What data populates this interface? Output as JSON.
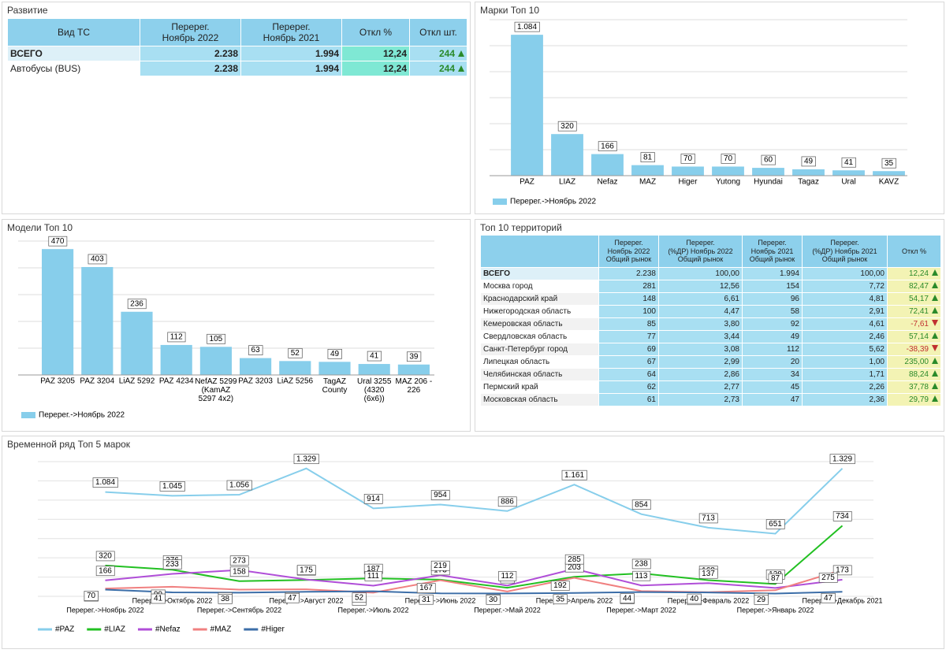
{
  "dev_panel": {
    "title": "Развитие",
    "columns": [
      "Вид ТС",
      "Перерег.\nНоябрь 2022",
      "Перерег.\nНоябрь 2021",
      "Откл %",
      "Откл шт."
    ],
    "rows": [
      [
        "ВСЕГО",
        "2.238",
        "1.994",
        "12,24",
        "244"
      ],
      [
        "Автобусы (BUS)",
        "2.238",
        "1.994",
        "12,24",
        "244"
      ]
    ]
  },
  "brands_panel": {
    "title": "Марки Топ 10"
  },
  "models_panel": {
    "title": "Модели Топ 10"
  },
  "series_panel": {
    "title": "Временной ряд Топ 5 марок"
  },
  "territory_panel": {
    "title": "Топ 10 территорий",
    "columns": [
      "Перерег.\nНоябрь 2022\nОбщий рынок",
      "Перерег.\n(%ДР) Ноябрь 2022\nОбщий рынок",
      "Перерег.\nНоябрь 2021\nОбщий рынок",
      "Перерег.\n(%ДР) Ноябрь 2021\nОбщий рынок",
      "Откл %"
    ],
    "rows": [
      [
        "ВСЕГО",
        "2.238",
        "100,00",
        "1.994",
        "100,00",
        "12,24"
      ],
      [
        "Москва город",
        "281",
        "12,56",
        "154",
        "7,72",
        "82,47"
      ],
      [
        "Краснодарский край",
        "148",
        "6,61",
        "96",
        "4,81",
        "54,17"
      ],
      [
        "Нижегородская область",
        "100",
        "4,47",
        "58",
        "2,91",
        "72,41"
      ],
      [
        "Кемеровская область",
        "85",
        "3,80",
        "92",
        "4,61",
        "-7,61"
      ],
      [
        "Свердловская область",
        "77",
        "3,44",
        "49",
        "2,46",
        "57,14"
      ],
      [
        "Санкт-Петербург город",
        "69",
        "3,08",
        "112",
        "5,62",
        "-38,39"
      ],
      [
        "Липецкая область",
        "67",
        "2,99",
        "20",
        "1,00",
        "235,00"
      ],
      [
        "Челябинская область",
        "64",
        "2,86",
        "34",
        "1,71",
        "88,24"
      ],
      [
        "Пермский край",
        "62",
        "2,77",
        "45",
        "2,26",
        "37,78"
      ],
      [
        "Московская область",
        "61",
        "2,73",
        "47",
        "2,36",
        "29,79"
      ]
    ]
  },
  "chart_data": [
    {
      "type": "bar",
      "categories": [
        "PAZ",
        "LIAZ",
        "Nefaz",
        "MAZ",
        "Higer",
        "Yutong",
        "Hyundai",
        "Tagaz",
        "Ural",
        "KAVZ"
      ],
      "series": [
        {
          "name": "Перерег.->Ноябрь 2022",
          "color": "#87ceeb",
          "values": [
            1084,
            320,
            166,
            81,
            70,
            70,
            60,
            49,
            41,
            35
          ],
          "value_labels": [
            "1.084",
            "320",
            "166",
            "81",
            "70",
            "70",
            "60",
            "49",
            "41",
            "35"
          ]
        }
      ],
      "ylim": [
        0,
        1200
      ],
      "yticks": [
        0,
        200,
        400,
        600,
        800,
        1000,
        1200
      ],
      "grid": true,
      "legend": "bottom-left"
    },
    {
      "type": "bar",
      "categories": [
        "PAZ 3205",
        "PAZ 3204",
        "LiAZ 5292",
        "PAZ 4234",
        "NefAZ 5299 (KamAZ 5297 4x2)",
        "PAZ 3203",
        "LiAZ 5256",
        "TagAZ County",
        "Ural 3255 (4320 (6x6))",
        "MAZ 206 - 226"
      ],
      "series": [
        {
          "name": "Перерег.->Ноябрь 2022",
          "color": "#87ceeb",
          "values": [
            470,
            403,
            236,
            112,
            105,
            63,
            52,
            49,
            41,
            39
          ]
        }
      ],
      "ylim": [
        0,
        500
      ],
      "yticks": [
        0,
        100,
        200,
        300,
        400,
        500
      ],
      "grid": true,
      "legend": "bottom-left"
    },
    {
      "type": "line",
      "categories": [
        "Перерег.->Ноябрь 2022",
        "Перерег.->Октябрь 2022",
        "Перерег.->Сентябрь 2022",
        "Перерег.->Август 2022",
        "Перерег.->Июль 2022",
        "Перерег.->Июнь 2022",
        "Перерег.->Май 2022",
        "Перерег.->Апрель 2022",
        "Перерег.->Март 2022",
        "Перерег.->Февраль 2022",
        "Перерег.->Январь 2022",
        "Перерег.->Декабрь 2021"
      ],
      "series": [
        {
          "name": "#PAZ",
          "color": "#87ceeb",
          "values": [
            1084,
            1045,
            1056,
            1329,
            914,
            954,
            886,
            1161,
            854,
            713,
            651,
            1329
          ],
          "value_labels": [
            "1.084",
            "1.045",
            "1.056",
            "1.329",
            "914",
            "954",
            "886",
            "1.161",
            "854",
            "713",
            "651",
            "1.329"
          ]
        },
        {
          "name": "#LIAZ",
          "color": "#22c022",
          "values": [
            320,
            276,
            158,
            170,
            187,
            173,
            89,
            203,
            238,
            168,
            128,
            734
          ]
        },
        {
          "name": "#Nefaz",
          "color": "#b04ed8",
          "values": [
            166,
            233,
            273,
            175,
            111,
            219,
            112,
            285,
            113,
            137,
            87,
            173
          ]
        },
        {
          "name": "#MAZ",
          "color": "#f08080",
          "values": [
            81,
            99,
            70,
            73,
            38,
            167,
            50,
            192,
            54,
            43,
            63,
            275
          ]
        },
        {
          "name": "#Higer",
          "color": "#3c6ea8",
          "values": [
            70,
            41,
            38,
            47,
            52,
            31,
            30,
            35,
            44,
            40,
            29,
            47
          ]
        }
      ],
      "ylim": [
        0,
        1400
      ],
      "yticks": [
        0,
        200,
        400,
        600,
        800,
        1000,
        1200,
        1400
      ],
      "grid": true,
      "legend": "bottom-left"
    }
  ]
}
